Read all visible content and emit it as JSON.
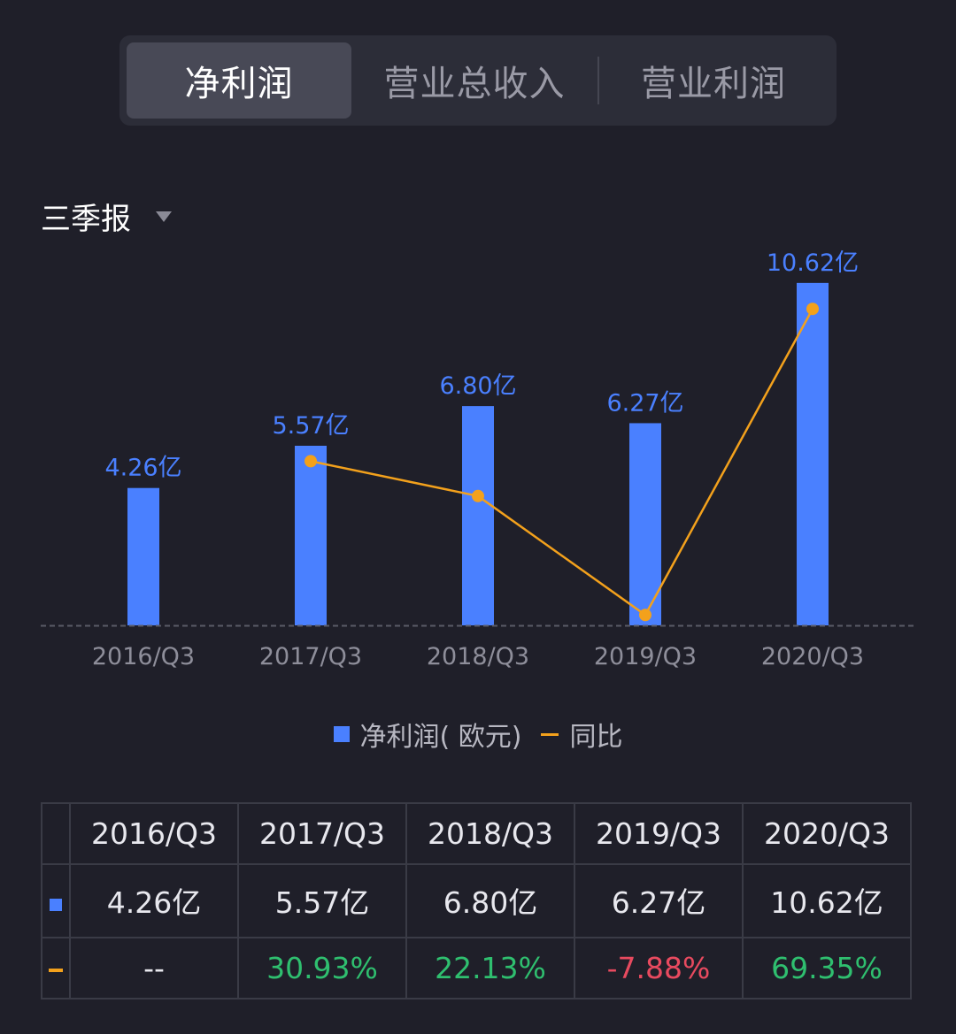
{
  "tabs": [
    {
      "label": "净利润",
      "active": true
    },
    {
      "label": "营业总收入",
      "active": false
    },
    {
      "label": "营业利润",
      "active": false
    }
  ],
  "period_selector": {
    "label": "三季报"
  },
  "colors": {
    "bar": "#4a80ff",
    "line": "#f3a11c",
    "positive": "#2fbf6f",
    "negative": "#e84a5f"
  },
  "chart_data": {
    "type": "bar",
    "categories": [
      "2016/Q3",
      "2017/Q3",
      "2018/Q3",
      "2019/Q3",
      "2020/Q3"
    ],
    "series": [
      {
        "name": "净利润(欧元)",
        "type": "bar",
        "values": [
          4.26,
          5.57,
          6.8,
          6.27,
          10.62
        ],
        "labels": [
          "4.26亿",
          "5.57亿",
          "6.80亿",
          "6.27亿",
          "10.62亿"
        ]
      },
      {
        "name": "同比",
        "type": "line",
        "values": [
          null,
          30.93,
          22.13,
          -7.88,
          69.35
        ]
      }
    ],
    "unit": "亿",
    "grid": false,
    "legend": "bottom-center"
  },
  "legend": {
    "bar_label": "净利润( 欧元)",
    "line_label": "同比"
  },
  "table": {
    "headers": [
      "2016/Q3",
      "2017/Q3",
      "2018/Q3",
      "2019/Q3",
      "2020/Q3"
    ],
    "rows": [
      {
        "marker": "bar",
        "cells": [
          "4.26亿",
          "5.57亿",
          "6.80亿",
          "6.27亿",
          "10.62亿"
        ]
      },
      {
        "marker": "line",
        "cells": [
          "--",
          "30.93%",
          "22.13%",
          "-7.88%",
          "69.35%"
        ]
      }
    ]
  }
}
